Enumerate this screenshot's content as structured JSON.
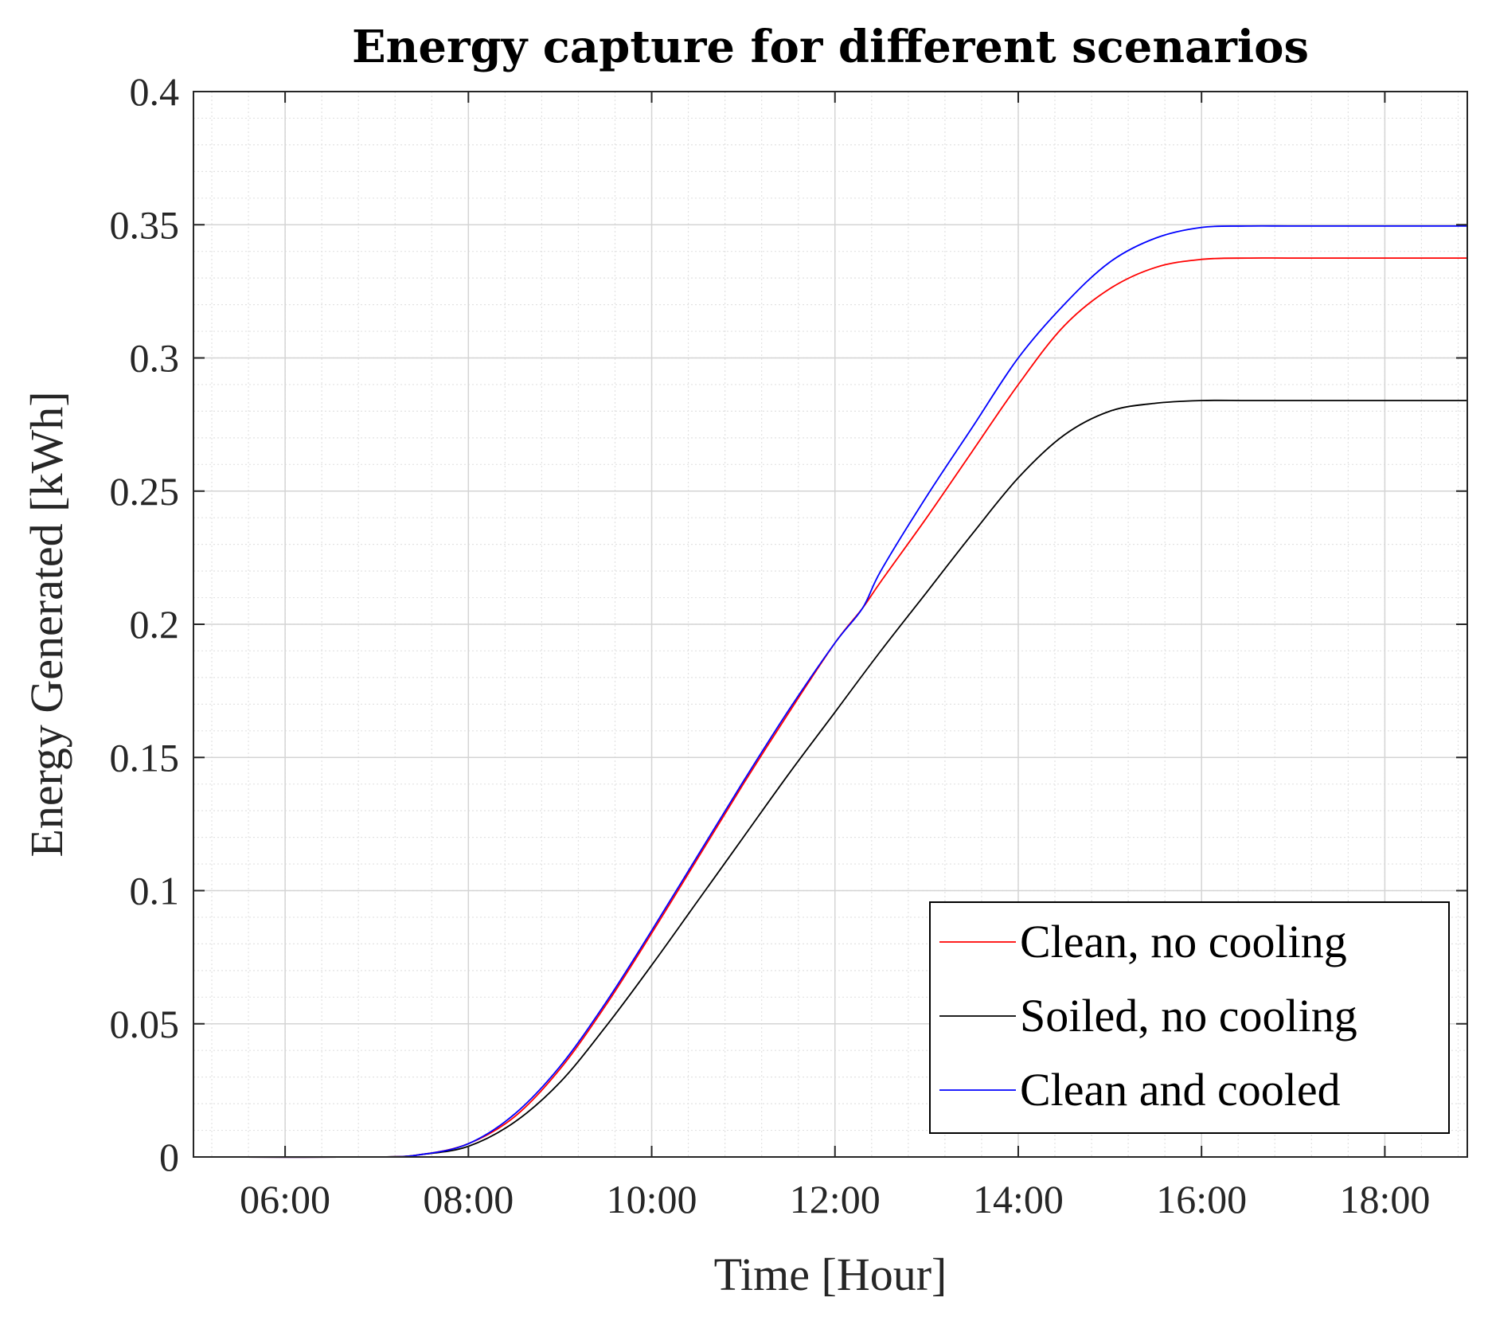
{
  "chart_data": {
    "type": "line",
    "title": "Energy capture for different scenarios",
    "xlabel": "Time [Hour]",
    "ylabel": "Energy Generated [kWh]",
    "xlim": [
      5,
      18.9
    ],
    "ylim": [
      0,
      0.4
    ],
    "x_ticks": [
      6,
      8,
      10,
      12,
      14,
      16,
      18
    ],
    "x_tick_labels": [
      "06:00",
      "08:00",
      "10:00",
      "12:00",
      "14:00",
      "16:00",
      "18:00"
    ],
    "y_ticks": [
      0,
      0.05,
      0.1,
      0.15,
      0.2,
      0.25,
      0.3,
      0.35,
      0.4
    ],
    "y_tick_labels": [
      "0",
      "0.05",
      "0.1",
      "0.15",
      "0.2",
      "0.25",
      "0.3",
      "0.35",
      "0.4"
    ],
    "grid": true,
    "minor_grid": true,
    "legend_position": "bottom-right",
    "series": [
      {
        "name": "Clean, no cooling",
        "color": "#ff0000",
        "x": [
          5.0,
          7.0,
          7.5,
          8.0,
          8.5,
          9.0,
          9.5,
          10.0,
          10.5,
          11.0,
          11.5,
          12.0,
          12.3,
          12.5,
          13.0,
          13.5,
          14.0,
          14.5,
          15.0,
          15.5,
          16.0,
          16.5,
          17.0,
          18.0,
          18.9
        ],
        "y": [
          0.0,
          0.0,
          0.001,
          0.005,
          0.015,
          0.033,
          0.057,
          0.084,
          0.112,
          0.14,
          0.167,
          0.193,
          0.206,
          0.216,
          0.24,
          0.265,
          0.29,
          0.312,
          0.326,
          0.334,
          0.337,
          0.3375,
          0.3375,
          0.3375,
          0.3375
        ]
      },
      {
        "name": "Soiled, no cooling",
        "color": "#000000",
        "x": [
          5.0,
          7.0,
          7.5,
          8.0,
          8.5,
          9.0,
          9.5,
          10.0,
          10.5,
          11.0,
          11.5,
          12.0,
          12.5,
          13.0,
          13.5,
          14.0,
          14.5,
          15.0,
          15.5,
          16.0,
          16.5,
          17.0,
          18.0,
          18.9
        ],
        "y": [
          0.0,
          0.0,
          0.001,
          0.004,
          0.013,
          0.028,
          0.049,
          0.072,
          0.096,
          0.12,
          0.144,
          0.167,
          0.19,
          0.212,
          0.234,
          0.255,
          0.271,
          0.28,
          0.283,
          0.284,
          0.284,
          0.284,
          0.284,
          0.284
        ]
      },
      {
        "name": "Clean and cooled",
        "color": "#0000ff",
        "x": [
          5.0,
          7.0,
          7.5,
          8.0,
          8.5,
          9.0,
          9.5,
          10.0,
          10.5,
          11.0,
          11.5,
          12.0,
          12.3,
          12.5,
          13.0,
          13.5,
          14.0,
          14.5,
          15.0,
          15.5,
          16.0,
          16.5,
          17.0,
          18.0,
          18.9
        ],
        "y": [
          0.0,
          0.0,
          0.001,
          0.005,
          0.016,
          0.034,
          0.058,
          0.085,
          0.113,
          0.141,
          0.168,
          0.193,
          0.206,
          0.22,
          0.248,
          0.274,
          0.3,
          0.32,
          0.336,
          0.345,
          0.349,
          0.3495,
          0.3495,
          0.3495,
          0.3495
        ]
      }
    ]
  }
}
